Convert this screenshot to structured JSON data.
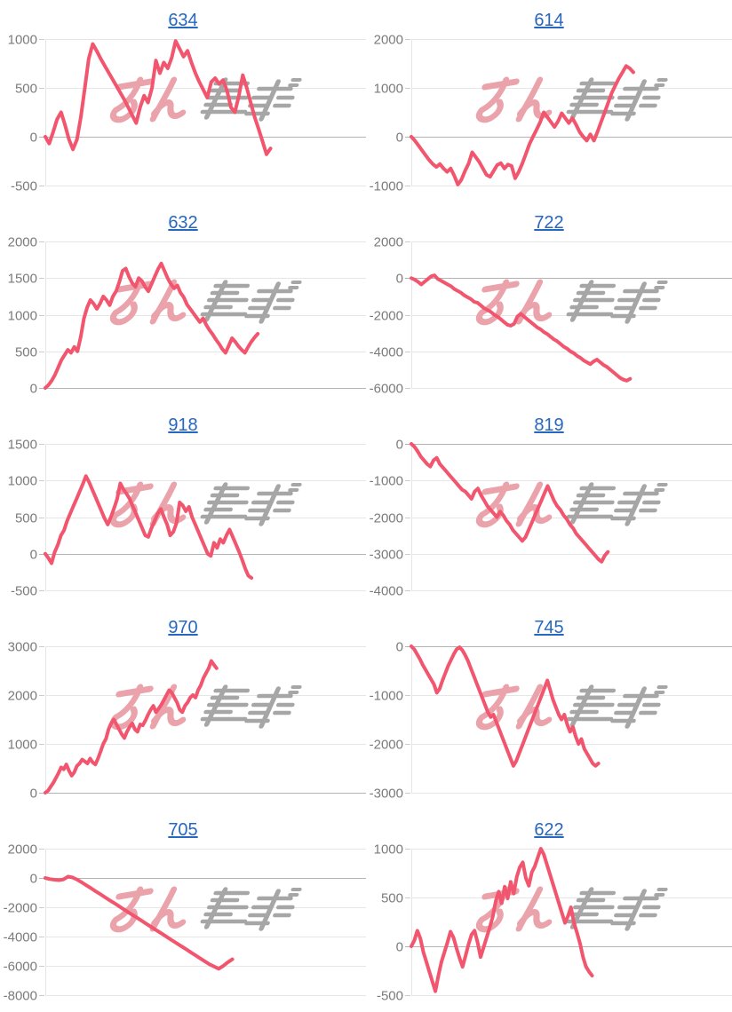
{
  "style": {
    "line_color": "#f2566e",
    "grid_color": "#e6e6e6",
    "zero_line_color": "#b3b3b3",
    "tick_color": "#cccccc",
    "tick_label_color": "#7b7b7b",
    "title_color": "#2767c0",
    "background": "#ffffff"
  },
  "watermark": {
    "text": "みんレポ",
    "pink_text": "みん",
    "gray_text": "レポ",
    "pink_color": "#eba3ab",
    "gray_color": "#a6a6a6"
  },
  "chart_data": [
    {
      "type": "line",
      "title": "634",
      "ylim": [
        -500,
        1000
      ],
      "yticks": [
        1000,
        500,
        0,
        -500
      ],
      "grid": true,
      "legend": "none",
      "x_end_frac": 0.71,
      "values": [
        0,
        -70,
        50,
        180,
        250,
        120,
        -30,
        -130,
        -30,
        200,
        500,
        800,
        950,
        880,
        800,
        730,
        660,
        590,
        520,
        450,
        380,
        300,
        220,
        140,
        300,
        420,
        350,
        500,
        780,
        650,
        760,
        700,
        810,
        980,
        900,
        820,
        880,
        760,
        650,
        560,
        480,
        400,
        560,
        600,
        540,
        580,
        470,
        300,
        250,
        420,
        630,
        500,
        350,
        200,
        80,
        -50,
        -180,
        -120
      ]
    },
    {
      "type": "line",
      "title": "614",
      "ylim": [
        -1000,
        2000
      ],
      "yticks": [
        2000,
        1000,
        0,
        -1000
      ],
      "grid": true,
      "legend": "none",
      "x_end_frac": 0.7,
      "values": [
        0,
        -80,
        -180,
        -280,
        -380,
        -480,
        -560,
        -620,
        -560,
        -650,
        -720,
        -650,
        -800,
        -980,
        -880,
        -700,
        -550,
        -320,
        -420,
        -520,
        -650,
        -780,
        -820,
        -700,
        -580,
        -540,
        -650,
        -570,
        -600,
        -850,
        -720,
        -550,
        -350,
        -150,
        0,
        150,
        300,
        500,
        400,
        300,
        200,
        320,
        480,
        380,
        280,
        380,
        250,
        100,
        0,
        -80,
        50,
        -80,
        100,
        300,
        500,
        700,
        900,
        1050,
        1200,
        1320,
        1450,
        1400,
        1320
      ]
    },
    {
      "type": "line",
      "title": "632",
      "ylim": [
        0,
        2000
      ],
      "yticks": [
        2000,
        1500,
        1000,
        500,
        0
      ],
      "grid": true,
      "legend": "none",
      "x_end_frac": 0.67,
      "values": [
        0,
        40,
        100,
        180,
        280,
        380,
        450,
        520,
        480,
        560,
        500,
        700,
        950,
        1100,
        1200,
        1150,
        1080,
        1150,
        1250,
        1200,
        1130,
        1250,
        1320,
        1450,
        1600,
        1630,
        1520,
        1430,
        1380,
        1500,
        1460,
        1380,
        1320,
        1420,
        1520,
        1620,
        1700,
        1600,
        1500,
        1420,
        1360,
        1400,
        1300,
        1240,
        1140,
        1080,
        1020,
        960,
        900,
        950,
        860,
        790,
        730,
        660,
        600,
        530,
        480,
        580,
        680,
        630,
        570,
        520,
        480,
        560,
        630,
        690,
        740
      ]
    },
    {
      "type": "line",
      "title": "722",
      "ylim": [
        -6000,
        2000
      ],
      "yticks": [
        2000,
        0,
        -2000,
        -4000,
        -6000
      ],
      "grid": true,
      "legend": "none",
      "x_end_frac": 0.69,
      "values": [
        0,
        -80,
        -200,
        -350,
        -200,
        -50,
        100,
        150,
        -50,
        -150,
        -250,
        -350,
        -450,
        -600,
        -700,
        -800,
        -950,
        -1050,
        -1150,
        -1300,
        -1350,
        -1500,
        -1650,
        -1750,
        -1850,
        -2000,
        -2100,
        -2250,
        -2400,
        -2550,
        -2600,
        -2500,
        -2100,
        -1950,
        -2100,
        -2250,
        -2400,
        -2550,
        -2700,
        -2800,
        -2950,
        -3050,
        -3200,
        -3350,
        -3450,
        -3600,
        -3750,
        -3850,
        -4000,
        -4100,
        -4250,
        -4350,
        -4500,
        -4600,
        -4700,
        -4550,
        -4450,
        -4600,
        -4750,
        -4850,
        -5000,
        -5150,
        -5300,
        -5450,
        -5550,
        -5600,
        -5500
      ]
    },
    {
      "type": "line",
      "title": "918",
      "ylim": [
        -500,
        1500
      ],
      "yticks": [
        1500,
        1000,
        500,
        0,
        -500
      ],
      "grid": true,
      "legend": "none",
      "x_end_frac": 0.65,
      "values": [
        0,
        -60,
        -130,
        20,
        120,
        250,
        320,
        450,
        550,
        650,
        750,
        850,
        950,
        1060,
        980,
        880,
        780,
        680,
        580,
        480,
        400,
        500,
        620,
        750,
        960,
        880,
        820,
        750,
        650,
        550,
        450,
        350,
        250,
        230,
        350,
        450,
        550,
        610,
        500,
        400,
        250,
        300,
        420,
        700,
        660,
        580,
        640,
        500,
        400,
        300,
        200,
        100,
        0,
        -30,
        150,
        80,
        200,
        150,
        250,
        330,
        230,
        130,
        30,
        -80,
        -200,
        -300,
        -330
      ]
    },
    {
      "type": "line",
      "title": "819",
      "ylim": [
        -4000,
        0
      ],
      "yticks": [
        0,
        -1000,
        -2000,
        -3000,
        -4000
      ],
      "grid": true,
      "legend": "none",
      "x_end_frac": 0.62,
      "values": [
        0,
        -80,
        -200,
        -350,
        -450,
        -550,
        -620,
        -450,
        -380,
        -550,
        -650,
        -750,
        -850,
        -950,
        -1050,
        -1150,
        -1250,
        -1300,
        -1400,
        -1500,
        -1300,
        -1220,
        -1400,
        -1550,
        -1700,
        -1800,
        -1900,
        -2000,
        -1850,
        -1950,
        -2100,
        -2200,
        -2350,
        -2450,
        -2550,
        -2650,
        -2550,
        -2350,
        -2150,
        -1950,
        -1750,
        -1550,
        -1350,
        -1150,
        -1350,
        -1550,
        -1700,
        -1800,
        -1950,
        -2050,
        -2200,
        -2300,
        -2450,
        -2550,
        -2650,
        -2750,
        -2850,
        -2950,
        -3050,
        -3150,
        -3220,
        -3050,
        -2950
      ]
    },
    {
      "type": "line",
      "title": "970",
      "ylim": [
        0,
        3000
      ],
      "yticks": [
        3000,
        2000,
        1000,
        0
      ],
      "grid": true,
      "legend": "none",
      "x_end_frac": 0.54,
      "values": [
        0,
        40,
        120,
        200,
        300,
        400,
        520,
        480,
        580,
        450,
        350,
        420,
        550,
        600,
        680,
        640,
        600,
        700,
        620,
        580,
        700,
        850,
        1000,
        1100,
        1300,
        1420,
        1500,
        1400,
        1300,
        1200,
        1120,
        1250,
        1350,
        1420,
        1300,
        1250,
        1400,
        1380,
        1480,
        1600,
        1700,
        1780,
        1650,
        1720,
        1800,
        1900,
        2000,
        2100,
        2050,
        1950,
        1850,
        1700,
        1650,
        1780,
        1850,
        1950,
        2000,
        1950,
        2100,
        2200,
        2350,
        2450,
        2550,
        2700,
        2620,
        2550
      ]
    },
    {
      "type": "line",
      "title": "745",
      "ylim": [
        -3000,
        0
      ],
      "yticks": [
        0,
        -1000,
        -2000,
        -3000
      ],
      "grid": true,
      "legend": "none",
      "x_end_frac": 0.59,
      "values": [
        0,
        -60,
        -160,
        -260,
        -380,
        -480,
        -580,
        -680,
        -780,
        -950,
        -870,
        -700,
        -550,
        -400,
        -280,
        -160,
        -60,
        -20,
        -80,
        -180,
        -300,
        -450,
        -600,
        -750,
        -900,
        -1050,
        -1200,
        -1350,
        -1450,
        -1400,
        -1550,
        -1700,
        -1850,
        -2000,
        -2150,
        -2300,
        -2450,
        -2350,
        -2200,
        -2050,
        -1900,
        -1750,
        -1600,
        -1450,
        -1300,
        -1150,
        -1000,
        -850,
        -700,
        -900,
        -1100,
        -1250,
        -1400,
        -1500,
        -1400,
        -1600,
        -1750,
        -1650,
        -1850,
        -2000,
        -1900,
        -2100,
        -2200,
        -2300,
        -2400,
        -2450,
        -2400
      ]
    },
    {
      "type": "line",
      "title": "705",
      "ylim": [
        -8000,
        2000
      ],
      "yticks": [
        2000,
        0,
        -2000,
        -4000,
        -6000,
        -8000
      ],
      "grid": true,
      "legend": "none",
      "x_end_frac": 0.59,
      "values": [
        0,
        -80,
        -120,
        -150,
        -100,
        100,
        30,
        -120,
        -300,
        -500,
        -700,
        -900,
        -1100,
        -1300,
        -1500,
        -1700,
        -1900,
        -2100,
        -2300,
        -2500,
        -2700,
        -2900,
        -3100,
        -3300,
        -3500,
        -3700,
        -3900,
        -4100,
        -4300,
        -4500,
        -4700,
        -4900,
        -5100,
        -5300,
        -5500,
        -5700,
        -5900,
        -6050,
        -6200,
        -6000,
        -5750,
        -5550
      ]
    },
    {
      "type": "line",
      "title": "622",
      "ylim": [
        -500,
        1000
      ],
      "yticks": [
        1000,
        500,
        0,
        -500
      ],
      "grid": true,
      "legend": "none",
      "x_end_frac": 0.57,
      "values": [
        0,
        60,
        160,
        80,
        -60,
        -160,
        -260,
        -360,
        -460,
        -300,
        -160,
        -60,
        40,
        150,
        90,
        -20,
        -120,
        -210,
        -100,
        20,
        120,
        160,
        40,
        -110,
        -10,
        90,
        190,
        300,
        460,
        560,
        440,
        610,
        490,
        660,
        540,
        710,
        810,
        860,
        700,
        620,
        760,
        820,
        910,
        1000,
        940,
        840,
        740,
        640,
        540,
        440,
        340,
        240,
        310,
        400,
        240,
        140,
        30,
        -110,
        -210,
        -260,
        -300
      ]
    }
  ]
}
